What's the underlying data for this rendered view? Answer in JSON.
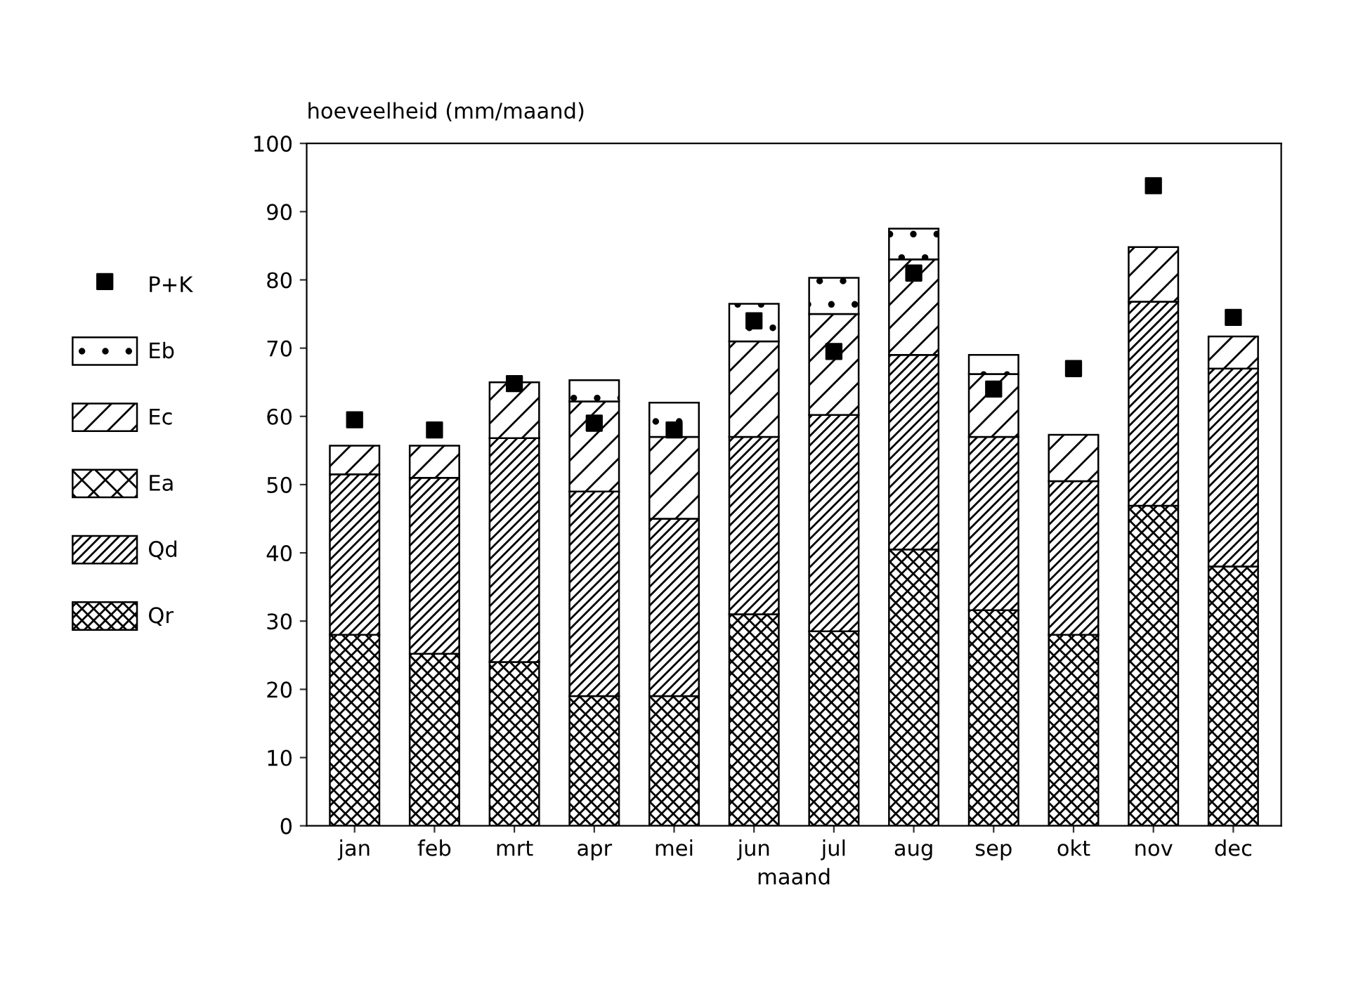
{
  "chart_data": {
    "type": "bar",
    "stacked": true,
    "ylabel": "hoeveelheid (mm/maand)",
    "xlabel": "maand",
    "categories": [
      "jan",
      "feb",
      "mrt",
      "apr",
      "mei",
      "jun",
      "jul",
      "aug",
      "sep",
      "okt",
      "nov",
      "dec"
    ],
    "ylim": [
      0,
      100
    ],
    "yticks": [
      0,
      10,
      20,
      30,
      40,
      50,
      60,
      70,
      80,
      90,
      100
    ],
    "grid": false,
    "legend": "left",
    "series": [
      {
        "name": "Qr",
        "color": "#000000",
        "values": [
          28,
          25.2,
          24,
          19,
          19,
          31,
          28.5,
          40.5,
          31.6,
          28,
          46.9,
          38
        ]
      },
      {
        "name": "Qd",
        "color": "#000000",
        "values": [
          23.5,
          25.8,
          32.8,
          30,
          26,
          26,
          31.7,
          28.5,
          25.4,
          22.5,
          29.9,
          29
        ]
      },
      {
        "name": "Ea",
        "color": "#000000",
        "values": [
          null,
          null,
          null,
          null,
          null,
          null,
          null,
          null,
          null,
          null,
          null,
          null
        ]
      },
      {
        "name": "Ec",
        "color": "#000000",
        "values": [
          4.2,
          4.7,
          8.2,
          13.2,
          12,
          14,
          14.8,
          14,
          9.2,
          6.8,
          8,
          4.7
        ]
      },
      {
        "name": "Eb",
        "color": "#000000",
        "values": [
          null,
          null,
          null,
          3.1,
          5,
          5.5,
          5.3,
          4.5,
          2.8,
          null,
          null,
          null
        ]
      },
      {
        "name": "P+K",
        "type": "scatter",
        "marker": "square",
        "color": "#000000",
        "values": [
          59.5,
          58,
          64.8,
          59,
          58,
          74,
          69.5,
          81,
          64,
          67,
          93.8,
          74.5
        ]
      }
    ]
  }
}
